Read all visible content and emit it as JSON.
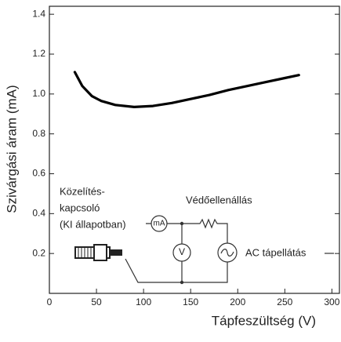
{
  "chart_data": {
    "type": "line",
    "xlabel": "Tápfeszültség (V)",
    "ylabel": "Szivárgási áram (mA)",
    "x": [
      27,
      35,
      45,
      55,
      70,
      90,
      110,
      130,
      150,
      170,
      190,
      210,
      230,
      250,
      265
    ],
    "series": [
      {
        "color": "#000000",
        "values": [
          1.11,
          1.04,
          0.99,
          0.965,
          0.945,
          0.935,
          0.94,
          0.955,
          0.975,
          0.995,
          1.02,
          1.04,
          1.06,
          1.08,
          1.095
        ]
      }
    ],
    "xlim": [
      0,
      308
    ],
    "ylim": [
      0,
      1.44
    ],
    "xticks": [
      0,
      50,
      100,
      150,
      200,
      250,
      300
    ],
    "yticks": [
      0.2,
      0.4,
      0.6,
      0.8,
      {
        "value": 1.0,
        "label": "1.0"
      },
      1.2,
      1.4
    ],
    "grid": false,
    "annotations": [
      "Közelítés-",
      "kapcsoló",
      "(KI állapotban)",
      "mA",
      "V",
      "Védőellenállás",
      "AC tápellátás"
    ]
  }
}
